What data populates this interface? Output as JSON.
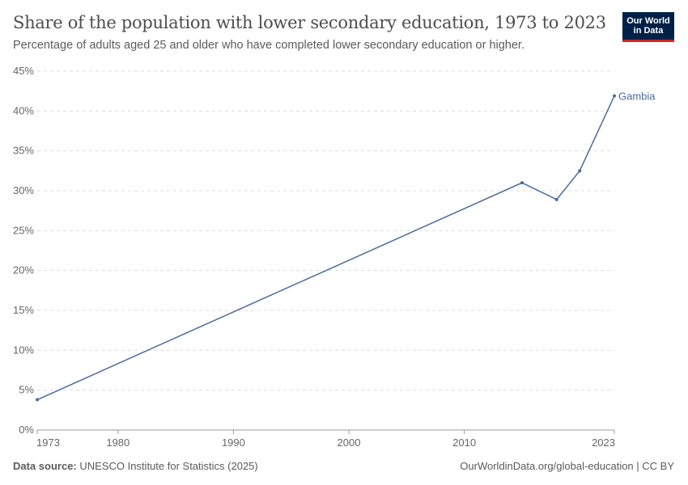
{
  "header": {
    "title": "Share of the population with lower secondary education, 1973 to 2023",
    "subtitle": "Percentage of adults aged 25 and older who have completed lower secondary education or higher.",
    "logo_line1": "Our World",
    "logo_line2": "in Data"
  },
  "footer": {
    "source_label": "Data source:",
    "source": "UNESCO Institute for Statistics (2025)",
    "url": "OurWorldinData.org/global-education | CC BY"
  },
  "colors": {
    "series": "#4c6a9c",
    "grid": "#dddddd",
    "axis": "#999999",
    "text": "#666666"
  },
  "chart_data": {
    "type": "line",
    "title": "Share of the population with lower secondary education, 1973 to 2023",
    "xlim": [
      1973,
      2023
    ],
    "ylim": [
      0,
      45
    ],
    "x_ticks": [
      "1973",
      "1980",
      "1990",
      "2000",
      "2010",
      "2023"
    ],
    "y_ticks": [
      "0%",
      "5%",
      "10%",
      "15%",
      "20%",
      "25%",
      "30%",
      "35%",
      "40%",
      "45%"
    ],
    "grid": "horizontal dashed",
    "series": [
      {
        "name": "Gambia",
        "x": [
          1973,
          2015,
          2018,
          2020,
          2023
        ],
        "values": [
          3.8,
          31.0,
          28.9,
          32.5,
          41.9
        ]
      }
    ]
  }
}
